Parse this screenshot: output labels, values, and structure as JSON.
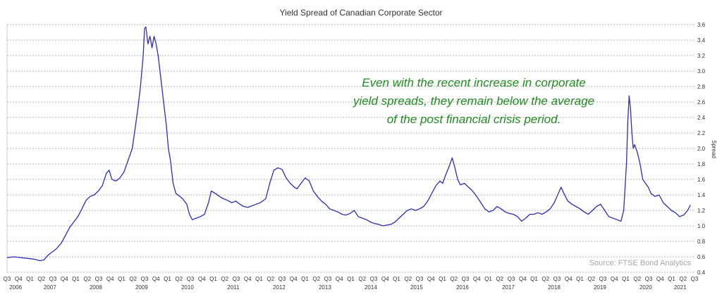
{
  "chart_data": {
    "type": "line",
    "title": "Yield Spread of Canadian Corporate Sector",
    "ylabel": "Spread",
    "ylim": [
      0.4,
      3.6
    ],
    "yticks": [
      0.4,
      0.6,
      0.8,
      1.0,
      1.2,
      1.4,
      1.6,
      1.8,
      2.0,
      2.2,
      2.4,
      2.6,
      2.8,
      3.0,
      3.2,
      3.4,
      3.6
    ],
    "ytick_labels": [
      "0.4",
      "0.6",
      "0.8",
      "1.0",
      "1.2",
      "1.4",
      "1.6",
      "1.8",
      "2.0",
      "2.2",
      "2.4",
      "2.6",
      "2.8",
      "3.0",
      "3.2",
      "3.4",
      "3.6"
    ],
    "grid": "horizontal dashed",
    "line_color": "#2e2eb8",
    "quarter_labels": [
      "Q3",
      "Q4",
      "Q1",
      "Q2",
      "Q3",
      "Q4",
      "Q1",
      "Q2",
      "Q3",
      "Q4",
      "Q1",
      "Q2",
      "Q3",
      "Q4",
      "Q1",
      "Q2",
      "Q3",
      "Q4",
      "Q1",
      "Q2",
      "Q3",
      "Q4",
      "Q1",
      "Q2",
      "Q3",
      "Q4",
      "Q1",
      "Q2",
      "Q3",
      "Q4",
      "Q1",
      "Q2",
      "Q3",
      "Q4",
      "Q1",
      "Q2",
      "Q3",
      "Q4",
      "Q1",
      "Q2",
      "Q3",
      "Q4",
      "Q1",
      "Q2",
      "Q3",
      "Q4",
      "Q1",
      "Q2",
      "Q3",
      "Q4",
      "Q1",
      "Q2",
      "Q3",
      "Q4",
      "Q1",
      "Q2",
      "Q3",
      "Q4",
      "Q1",
      "Q2",
      "Q3",
      "Q4",
      "Q1",
      "Q2",
      "Q3",
      "Q4",
      "Q1",
      "Q2",
      "Q3",
      "Q4",
      "Q1",
      "Q2",
      "Q3",
      "Q4",
      "Q1",
      "Q2",
      "Q3",
      "Q4",
      "Q1",
      "Q2"
    ],
    "year_labels": [
      {
        "label": "2006",
        "q": 0.5
      },
      {
        "label": "2007",
        "q": 3.5
      },
      {
        "label": "2008",
        "q": 7.5
      },
      {
        "label": "2009",
        "q": 11.5
      },
      {
        "label": "2010",
        "q": 15.5
      },
      {
        "label": "2011",
        "q": 19.5
      },
      {
        "label": "2012",
        "q": 23.5
      },
      {
        "label": "2013",
        "q": 27.5
      },
      {
        "label": "2014",
        "q": 31.5
      },
      {
        "label": "2015",
        "q": 35.5
      },
      {
        "label": "2016",
        "q": 39.5
      },
      {
        "label": "2017",
        "q": 43.5
      },
      {
        "label": "2018",
        "q": 47.5
      },
      {
        "label": "2019",
        "q": 51.5
      },
      {
        "label": "2020",
        "q": 55.5
      },
      {
        "label": "2021",
        "q": 58.5
      }
    ],
    "series": [
      {
        "values": [
          [
            0.0,
            0.59
          ],
          [
            0.5,
            0.6
          ],
          [
            1.0,
            0.59
          ],
          [
            1.5,
            0.58
          ],
          [
            2.0,
            0.57
          ],
          [
            2.4,
            0.55
          ],
          [
            2.7,
            0.56
          ],
          [
            3.0,
            0.62
          ],
          [
            3.3,
            0.66
          ],
          [
            3.6,
            0.7
          ],
          [
            4.0,
            0.78
          ],
          [
            4.3,
            0.88
          ],
          [
            4.6,
            0.98
          ],
          [
            4.9,
            1.05
          ],
          [
            5.2,
            1.12
          ],
          [
            5.5,
            1.22
          ],
          [
            5.8,
            1.33
          ],
          [
            6.1,
            1.38
          ],
          [
            6.4,
            1.4
          ],
          [
            6.7,
            1.45
          ],
          [
            7.0,
            1.52
          ],
          [
            7.3,
            1.68
          ],
          [
            7.5,
            1.72
          ],
          [
            7.7,
            1.6
          ],
          [
            8.0,
            1.58
          ],
          [
            8.3,
            1.62
          ],
          [
            8.6,
            1.7
          ],
          [
            8.9,
            1.85
          ],
          [
            9.2,
            2.0
          ],
          [
            9.4,
            2.25
          ],
          [
            9.6,
            2.5
          ],
          [
            9.8,
            2.8
          ],
          [
            10.0,
            3.2
          ],
          [
            10.1,
            3.55
          ],
          [
            10.2,
            3.57
          ],
          [
            10.35,
            3.35
          ],
          [
            10.5,
            3.45
          ],
          [
            10.65,
            3.3
          ],
          [
            10.8,
            3.45
          ],
          [
            10.95,
            3.35
          ],
          [
            11.1,
            3.2
          ],
          [
            11.3,
            2.9
          ],
          [
            11.5,
            2.6
          ],
          [
            11.7,
            2.3
          ],
          [
            11.85,
            2.0
          ],
          [
            12.0,
            1.85
          ],
          [
            12.2,
            1.55
          ],
          [
            12.4,
            1.42
          ],
          [
            12.7,
            1.38
          ],
          [
            12.9,
            1.35
          ],
          [
            13.2,
            1.28
          ],
          [
            13.4,
            1.15
          ],
          [
            13.6,
            1.08
          ],
          [
            13.9,
            1.1
          ],
          [
            14.2,
            1.12
          ],
          [
            14.5,
            1.15
          ],
          [
            14.8,
            1.3
          ],
          [
            15.0,
            1.45
          ],
          [
            15.3,
            1.42
          ],
          [
            15.6,
            1.38
          ],
          [
            15.9,
            1.35
          ],
          [
            16.2,
            1.33
          ],
          [
            16.5,
            1.3
          ],
          [
            16.8,
            1.32
          ],
          [
            17.1,
            1.28
          ],
          [
            17.4,
            1.25
          ],
          [
            17.7,
            1.24
          ],
          [
            18.0,
            1.26
          ],
          [
            18.3,
            1.28
          ],
          [
            18.6,
            1.3
          ],
          [
            19.0,
            1.35
          ],
          [
            19.3,
            1.55
          ],
          [
            19.6,
            1.72
          ],
          [
            19.9,
            1.75
          ],
          [
            20.2,
            1.73
          ],
          [
            20.5,
            1.62
          ],
          [
            20.8,
            1.55
          ],
          [
            21.1,
            1.5
          ],
          [
            21.3,
            1.48
          ],
          [
            21.6,
            1.55
          ],
          [
            21.9,
            1.62
          ],
          [
            22.2,
            1.58
          ],
          [
            22.5,
            1.45
          ],
          [
            22.8,
            1.38
          ],
          [
            23.1,
            1.32
          ],
          [
            23.4,
            1.28
          ],
          [
            23.7,
            1.22
          ],
          [
            24.0,
            1.2
          ],
          [
            24.3,
            1.18
          ],
          [
            24.6,
            1.15
          ],
          [
            24.9,
            1.14
          ],
          [
            25.2,
            1.16
          ],
          [
            25.5,
            1.2
          ],
          [
            25.8,
            1.12
          ],
          [
            26.1,
            1.1
          ],
          [
            26.4,
            1.08
          ],
          [
            26.7,
            1.05
          ],
          [
            27.0,
            1.03
          ],
          [
            27.3,
            1.02
          ],
          [
            27.6,
            1.0
          ],
          [
            27.9,
            1.01
          ],
          [
            28.2,
            1.02
          ],
          [
            28.5,
            1.05
          ],
          [
            28.8,
            1.1
          ],
          [
            29.1,
            1.15
          ],
          [
            29.4,
            1.2
          ],
          [
            29.7,
            1.22
          ],
          [
            30.0,
            1.2
          ],
          [
            30.3,
            1.22
          ],
          [
            30.6,
            1.25
          ],
          [
            30.9,
            1.32
          ],
          [
            31.2,
            1.42
          ],
          [
            31.5,
            1.52
          ],
          [
            31.8,
            1.58
          ],
          [
            32.0,
            1.55
          ],
          [
            32.2,
            1.65
          ],
          [
            32.5,
            1.78
          ],
          [
            32.7,
            1.88
          ],
          [
            32.9,
            1.75
          ],
          [
            33.1,
            1.6
          ],
          [
            33.3,
            1.53
          ],
          [
            33.6,
            1.55
          ],
          [
            33.9,
            1.5
          ],
          [
            34.2,
            1.45
          ],
          [
            34.5,
            1.38
          ],
          [
            34.8,
            1.3
          ],
          [
            35.1,
            1.22
          ],
          [
            35.4,
            1.18
          ],
          [
            35.7,
            1.2
          ],
          [
            36.0,
            1.25
          ],
          [
            36.3,
            1.22
          ],
          [
            36.6,
            1.18
          ],
          [
            36.9,
            1.16
          ],
          [
            37.2,
            1.15
          ],
          [
            37.5,
            1.12
          ],
          [
            37.8,
            1.06
          ],
          [
            38.1,
            1.1
          ],
          [
            38.4,
            1.15
          ],
          [
            38.7,
            1.15
          ],
          [
            39.0,
            1.17
          ],
          [
            39.3,
            1.15
          ],
          [
            39.6,
            1.18
          ],
          [
            39.9,
            1.22
          ],
          [
            40.2,
            1.3
          ],
          [
            40.5,
            1.42
          ],
          [
            40.7,
            1.5
          ],
          [
            40.9,
            1.42
          ],
          [
            41.2,
            1.32
          ],
          [
            41.5,
            1.28
          ],
          [
            41.8,
            1.25
          ],
          [
            42.1,
            1.22
          ],
          [
            42.4,
            1.18
          ],
          [
            42.7,
            1.15
          ],
          [
            43.0,
            1.2
          ],
          [
            43.3,
            1.25
          ],
          [
            43.6,
            1.28
          ],
          [
            43.9,
            1.2
          ],
          [
            44.2,
            1.12
          ],
          [
            44.5,
            1.1
          ],
          [
            44.8,
            1.08
          ],
          [
            45.1,
            1.06
          ],
          [
            45.3,
            1.2
          ],
          [
            45.5,
            1.8
          ],
          [
            45.6,
            2.35
          ],
          [
            45.7,
            2.68
          ],
          [
            45.8,
            2.5
          ],
          [
            45.9,
            2.2
          ],
          [
            46.0,
            2.0
          ],
          [
            46.1,
            2.05
          ],
          [
            46.3,
            1.95
          ],
          [
            46.5,
            1.8
          ],
          [
            46.7,
            1.6
          ],
          [
            46.9,
            1.55
          ],
          [
            47.1,
            1.5
          ],
          [
            47.3,
            1.42
          ],
          [
            47.6,
            1.38
          ],
          [
            47.9,
            1.4
          ],
          [
            48.2,
            1.3
          ],
          [
            48.5,
            1.25
          ],
          [
            48.8,
            1.2
          ],
          [
            49.1,
            1.17
          ],
          [
            49.4,
            1.12
          ],
          [
            49.7,
            1.14
          ],
          [
            50.0,
            1.2
          ],
          [
            50.2,
            1.27
          ]
        ]
      }
    ],
    "x_range": [
      0,
      50.5
    ]
  },
  "annotation": {
    "lines": [
      "Even with the recent increase in corporate",
      "yield spreads, they remain below the average",
      "of the post financial crisis period."
    ],
    "color": "#218a21"
  },
  "source_note": "Source: FTSE Bond Analytics"
}
